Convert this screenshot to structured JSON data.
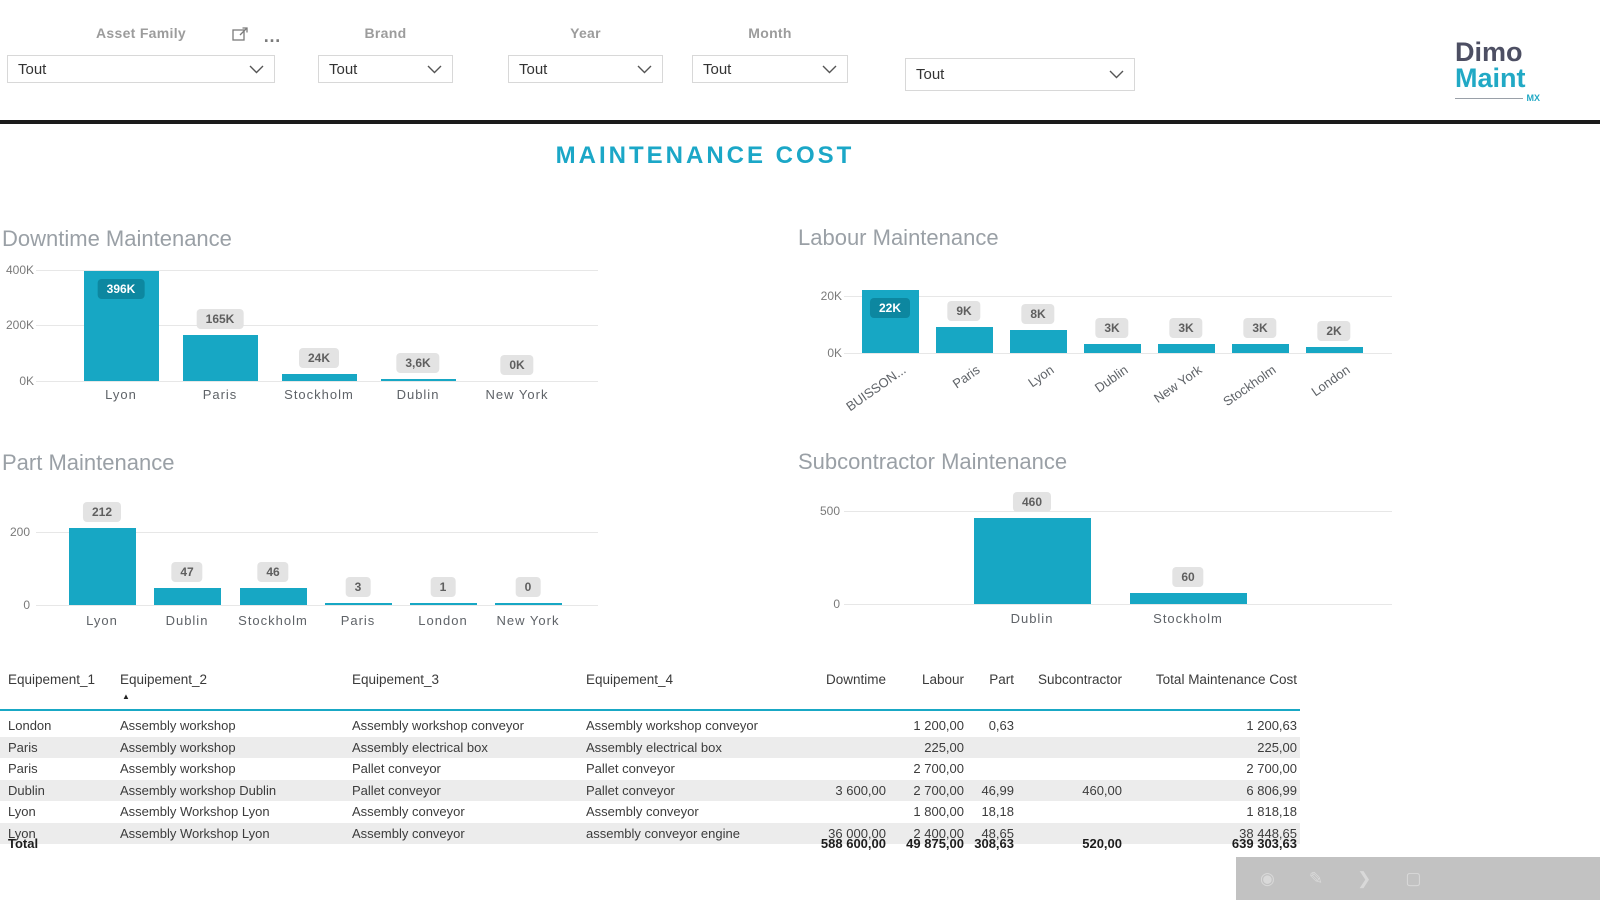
{
  "title": "MAINTENANCE COST",
  "filters": {
    "asset_family": {
      "label": "Asset Family",
      "value": "Tout"
    },
    "brand": {
      "label": "Brand",
      "value": "Tout"
    },
    "year": {
      "label": "Year",
      "value": "Tout"
    },
    "month": {
      "label": "Month",
      "value": "Tout"
    },
    "extra": {
      "label": "",
      "value": "Tout"
    }
  },
  "logo": {
    "line1": "Dimo",
    "line2": "Maint",
    "sub": "MX"
  },
  "icons": {
    "more_options": "…",
    "sort_ascending": "▲",
    "record": "◉",
    "pencil": "✎",
    "chevron_right": "❯",
    "square": "▢"
  },
  "colors": {
    "accent_teal": "#17a7c4",
    "dark_pill_teal": "#0d87a0",
    "title_teal": "#1ba7c7",
    "logo_navy": "#4d4f63",
    "divider_black": "#1b1b1b",
    "pill_gray": "#e3e3e3",
    "row_alt_gray": "#ececec"
  },
  "chart_data": [
    {
      "type": "bar",
      "title": "Downtime Maintenance",
      "categories": [
        "Lyon",
        "Paris",
        "Stockholm",
        "Dublin",
        "New York"
      ],
      "values": [
        396000,
        165000,
        24000,
        3600,
        0
      ],
      "data_labels": [
        "396K",
        "165K",
        "24K",
        "3,6K",
        "0K"
      ],
      "yticks": [
        "400K",
        "200K",
        "0K"
      ],
      "ylim": [
        0,
        440000
      ],
      "grid": true,
      "legend": "none"
    },
    {
      "type": "bar",
      "title": "Labour Maintenance",
      "categories": [
        "BUISSON...",
        "Paris",
        "Lyon",
        "Dublin",
        "New York",
        "Stockholm",
        "London"
      ],
      "values": [
        22000,
        9000,
        8000,
        3000,
        3000,
        3000,
        2000
      ],
      "data_labels": [
        "22K",
        "9K",
        "8K",
        "3K",
        "3K",
        "3K",
        "2K"
      ],
      "yticks": [
        "20K",
        "0K"
      ],
      "ylim": [
        0,
        24000
      ],
      "grid": true,
      "legend": "none"
    },
    {
      "type": "bar",
      "title": "Part Maintenance",
      "categories": [
        "Lyon",
        "Dublin",
        "Stockholm",
        "Paris",
        "London",
        "New York"
      ],
      "values": [
        212,
        47,
        46,
        3,
        1,
        0
      ],
      "data_labels": [
        "212",
        "47",
        "46",
        "3",
        "1",
        "0"
      ],
      "yticks": [
        "200",
        "0"
      ],
      "ylim": [
        0,
        290
      ],
      "grid": true,
      "legend": "none"
    },
    {
      "type": "bar",
      "title": "Subcontractor Maintenance",
      "categories": [
        "Dublin",
        "Stockholm"
      ],
      "values": [
        460,
        60
      ],
      "data_labels": [
        "460",
        "60"
      ],
      "yticks": [
        "500",
        "0"
      ],
      "ylim": [
        0,
        560
      ],
      "grid": true,
      "legend": "none"
    }
  ],
  "table": {
    "columns": [
      "Equipement_1",
      "Equipement_2",
      "Equipement_3",
      "Equipement_4",
      "Downtime",
      "Labour",
      "Part",
      "Subcontractor",
      "Total Maintenance Cost"
    ],
    "sorted_column": "Equipement_2",
    "rows": [
      [
        "London",
        "Assembly workshop",
        "Assembly workshop conveyor",
        "Assembly workshop conveyor",
        "",
        "1 200,00",
        "0,63",
        "",
        "1 200,63"
      ],
      [
        "Paris",
        "Assembly workshop",
        "Assembly electrical box",
        "Assembly electrical box",
        "",
        "225,00",
        "",
        "",
        "225,00"
      ],
      [
        "Paris",
        "Assembly workshop",
        "Pallet conveyor",
        "Pallet conveyor",
        "",
        "2 700,00",
        "",
        "",
        "2 700,00"
      ],
      [
        "Dublin",
        "Assembly workshop Dublin",
        "Pallet conveyor",
        "Pallet conveyor",
        "3 600,00",
        "2 700,00",
        "46,99",
        "460,00",
        "6 806,99"
      ],
      [
        "Lyon",
        "Assembly Workshop Lyon",
        "Assembly conveyor",
        "Assembly conveyor",
        "",
        "1 800,00",
        "18,18",
        "",
        "1 818,18"
      ],
      [
        "Lyon",
        "Assembly Workshop Lyon",
        "Assembly conveyor",
        "assembly conveyor engine",
        "36 000,00",
        "2 400,00",
        "48,65",
        "",
        "38 448,65"
      ]
    ],
    "total": {
      "label": "Total",
      "values": [
        "588 600,00",
        "49 875,00",
        "308,63",
        "520,00",
        "639 303,63"
      ]
    }
  }
}
